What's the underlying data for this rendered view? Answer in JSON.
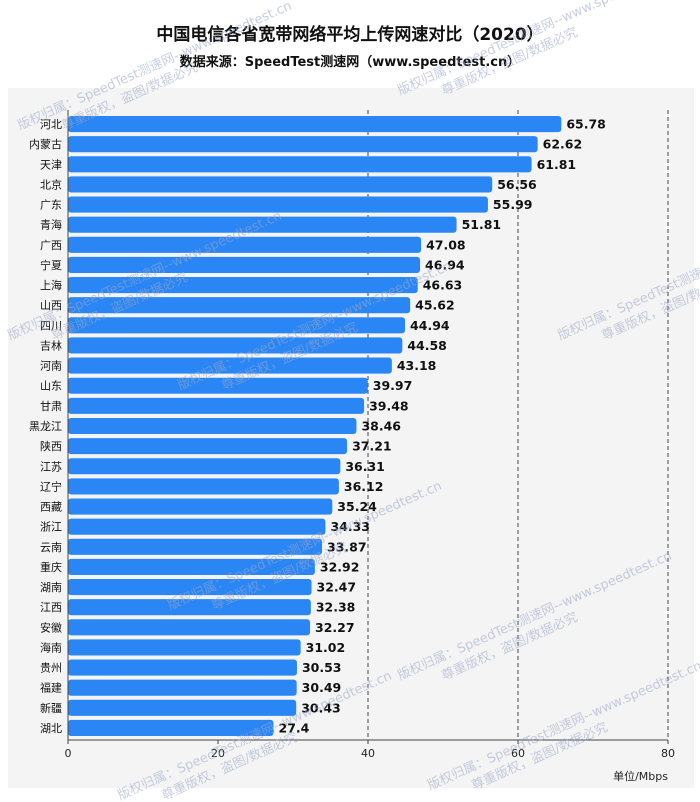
{
  "chart_data": {
    "type": "bar",
    "orientation": "horizontal",
    "title": "中国电信各省宽带网络平均上传网速对比（2020）",
    "subtitle": "数据来源：SpeedTest测速网（www.speedtest.cn）",
    "unit": "单位/Mbps",
    "xlim": [
      0,
      80
    ],
    "xticks": [
      "0",
      "20",
      "40",
      "60",
      "80"
    ],
    "categories": [
      "河北",
      "内蒙古",
      "天津",
      "北京",
      "广东",
      "青海",
      "广西",
      "宁夏",
      "上海",
      "山西",
      "四川",
      "吉林",
      "河南",
      "山东",
      "甘肃",
      "黑龙江",
      "陕西",
      "江苏",
      "辽宁",
      "西藏",
      "浙江",
      "云南",
      "重庆",
      "湖南",
      "江西",
      "安徽",
      "海南",
      "贵州",
      "福建",
      "新疆",
      "湖北"
    ],
    "values": [
      65.78,
      62.62,
      61.81,
      56.56,
      55.99,
      51.81,
      47.08,
      46.94,
      46.63,
      45.62,
      44.94,
      44.58,
      43.18,
      39.97,
      39.48,
      38.46,
      37.21,
      36.31,
      36.12,
      35.24,
      34.33,
      33.87,
      32.92,
      32.47,
      32.38,
      32.27,
      31.02,
      30.53,
      30.49,
      30.43,
      27.4
    ],
    "value_labels": [
      "65.78",
      "62.62",
      "61.81",
      "56.56",
      "55.99",
      "51.81",
      "47.08",
      "46.94",
      "46.63",
      "45.62",
      "44.94",
      "44.58",
      "43.18",
      "39.97",
      "39.48",
      "38.46",
      "37.21",
      "36.31",
      "36.12",
      "35.24",
      "34.33",
      "33.87",
      "32.92",
      "32.47",
      "32.38",
      "32.27",
      "31.02",
      "30.53",
      "30.49",
      "30.43",
      "27.4"
    ],
    "bar_color": "#2a86f5",
    "grid": "dashed vertical lines at 40, 60, 80",
    "watermark_lines": [
      "版权归属：SpeedTest测速网--www.speedtest.cn",
      "尊重版权，盗图/数据必究"
    ]
  }
}
